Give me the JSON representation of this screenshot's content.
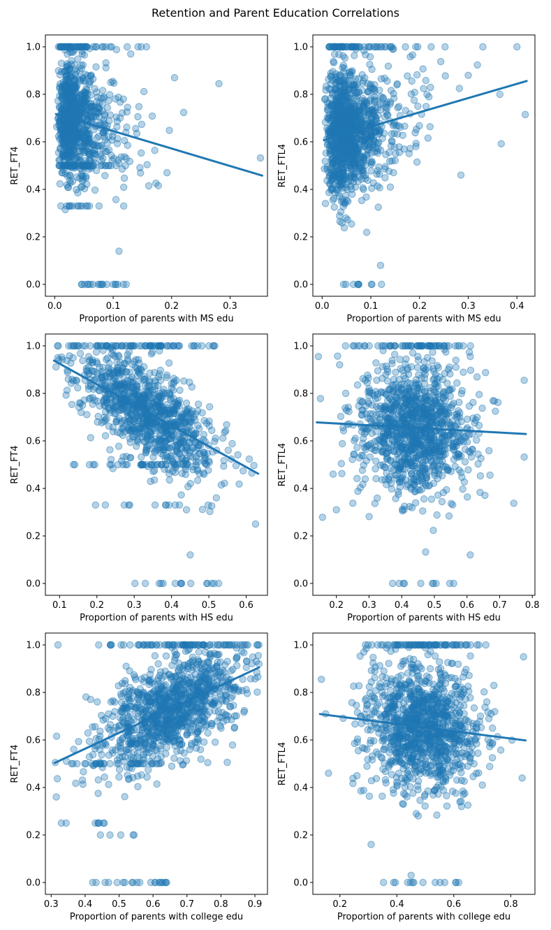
{
  "figure": {
    "title": "Retention and Parent Education Correlations",
    "background": "#ffffff",
    "accent": "#1f77b4",
    "scatter_fill_opacity": 0.33,
    "scatter_edge_opacity": 0.5,
    "point_radius": 4.7,
    "trend_line_width": 3
  },
  "chart_data": [
    {
      "type": "scatter",
      "name": "ret-ft4-vs-ms-edu",
      "xlabel": "Proportion of parents with MS edu",
      "ylabel": "RET_FT4",
      "xlim": [
        -0.016,
        0.364
      ],
      "ylim": [
        -0.05,
        1.05
      ],
      "xticks": [
        0.0,
        0.1,
        0.2,
        0.3
      ],
      "yticks": [
        0.0,
        0.2,
        0.4,
        0.6,
        0.8,
        1.0
      ],
      "trend": {
        "x": [
          0.002,
          0.355
        ],
        "y": [
          0.717,
          0.458
        ]
      },
      "points": {
        "seed": 11,
        "n": 1000,
        "x": {
          "dist": "lognormal",
          "mu": -3.41,
          "sigma": 0.65,
          "min": 0.002,
          "max": 0.23
        },
        "y": {
          "intercept": 0.719,
          "slope": -0.734,
          "sd": 0.125
        },
        "snaps": [
          {
            "y": 1.0,
            "p": 0.055
          },
          {
            "y": 0.5,
            "p": 0.04
          },
          {
            "y": 0.33,
            "p": 0.01
          },
          {
            "y": 0.0,
            "p": 0.013,
            "xmin": 0.045,
            "xmax": 0.125
          }
        ]
      },
      "extra_points": [
        [
          0.281,
          0.845
        ],
        [
          0.352,
          0.532
        ],
        [
          0.148,
          1.0
        ],
        [
          0.157,
          1.0
        ],
        [
          0.13,
          0.97
        ],
        [
          0.11,
          0.14
        ],
        [
          0.205,
          0.87
        ]
      ]
    },
    {
      "type": "scatter",
      "name": "ret-ftl4-vs-ms-edu",
      "xlabel": "Proportion of parents with MS edu",
      "ylabel": "RET_FTL4",
      "xlim": [
        -0.019,
        0.437
      ],
      "ylim": [
        -0.05,
        1.05
      ],
      "xticks": [
        0.0,
        0.1,
        0.2,
        0.3,
        0.4
      ],
      "yticks": [
        0.0,
        0.2,
        0.4,
        0.6,
        0.8,
        1.0
      ],
      "trend": {
        "x": [
          0.004,
          0.42
        ],
        "y": [
          0.607,
          0.856
        ]
      },
      "points": {
        "seed": 22,
        "n": 1200,
        "x": {
          "dist": "lognormal",
          "mu": -2.96,
          "sigma": 0.62,
          "min": 0.004,
          "max": 0.42
        },
        "y": {
          "intercept": 0.604,
          "slope": 0.599,
          "sd": 0.135
        },
        "snaps": [
          {
            "y": 1.0,
            "p": 0.05
          },
          {
            "y": 0.0,
            "p": 0.01,
            "xmin": 0.03,
            "xmax": 0.13
          }
        ]
      },
      "extra_points": [
        [
          0.417,
          0.715
        ],
        [
          0.4,
          1.0
        ],
        [
          0.365,
          0.8
        ],
        [
          0.33,
          1.0
        ],
        [
          0.3,
          0.88
        ],
        [
          0.285,
          0.46
        ],
        [
          0.12,
          0.08
        ]
      ]
    },
    {
      "type": "scatter",
      "name": "ret-ft4-vs-hs-edu",
      "xlabel": "Proportion of parents with HS edu",
      "ylabel": "RET_FT4",
      "xlim": [
        0.062,
        0.657
      ],
      "ylim": [
        -0.05,
        1.05
      ],
      "xticks": [
        0.1,
        0.2,
        0.3,
        0.4,
        0.5,
        0.6
      ],
      "yticks": [
        0.0,
        0.2,
        0.4,
        0.6,
        0.8,
        1.0
      ],
      "trend": {
        "x": [
          0.085,
          0.632
        ],
        "y": [
          0.938,
          0.462
        ]
      },
      "points": {
        "seed": 33,
        "n": 1100,
        "x": {
          "dist": "normal",
          "mean": 0.335,
          "sd": 0.095,
          "min": 0.085,
          "max": 0.633
        },
        "y": {
          "intercept": 1.012,
          "slope": -0.87,
          "sd": 0.095
        },
        "snaps": [
          {
            "y": 1.0,
            "p": 0.05
          },
          {
            "y": 0.5,
            "p": 0.035
          },
          {
            "y": 0.33,
            "p": 0.008
          },
          {
            "y": 0.0,
            "p": 0.015,
            "xmin": 0.3,
            "xmax": 0.53
          }
        ]
      },
      "extra_points": [
        [
          0.625,
          0.25
        ],
        [
          0.615,
          0.465
        ],
        [
          0.52,
          0.36
        ],
        [
          0.095,
          0.95
        ],
        [
          0.45,
          0.12
        ],
        [
          0.44,
          0.31
        ]
      ]
    },
    {
      "type": "scatter",
      "name": "ret-ftl4-vs-hs-edu",
      "xlabel": "Proportion of parents with HS edu",
      "ylabel": "RET_FTL4",
      "xlim": [
        0.128,
        0.808
      ],
      "ylim": [
        -0.05,
        1.05
      ],
      "xticks": [
        0.2,
        0.3,
        0.4,
        0.5,
        0.6,
        0.7,
        0.8
      ],
      "yticks": [
        0.0,
        0.2,
        0.4,
        0.6,
        0.8,
        1.0
      ],
      "trend": {
        "x": [
          0.14,
          0.78
        ],
        "y": [
          0.678,
          0.629
        ]
      },
      "points": {
        "seed": 44,
        "n": 1200,
        "x": {
          "dist": "normal",
          "mean": 0.44,
          "sd": 0.085,
          "min": 0.14,
          "max": 0.78
        },
        "y": {
          "intercept": 0.689,
          "slope": -0.0766,
          "sd": 0.14
        },
        "snaps": [
          {
            "y": 1.0,
            "p": 0.05
          },
          {
            "y": 0.0,
            "p": 0.01,
            "xmin": 0.37,
            "xmax": 0.62
          }
        ]
      },
      "extra_points": [
        [
          0.775,
          0.855
        ],
        [
          0.775,
          0.532
        ],
        [
          0.61,
          0.955
        ],
        [
          0.145,
          0.955
        ],
        [
          0.19,
          0.46
        ],
        [
          0.2,
          0.31
        ],
        [
          0.61,
          0.12
        ]
      ]
    },
    {
      "type": "scatter",
      "name": "ret-ft4-vs-college-edu",
      "xlabel": "Proportion of parents with college edu",
      "ylabel": "RET_FT4",
      "xlim": [
        0.283,
        0.937
      ],
      "ylim": [
        -0.05,
        1.05
      ],
      "xticks": [
        0.3,
        0.4,
        0.5,
        0.6,
        0.7,
        0.8,
        0.9
      ],
      "yticks": [
        0.0,
        0.2,
        0.4,
        0.6,
        0.8,
        1.0
      ],
      "trend": {
        "x": [
          0.31,
          0.912
        ],
        "y": [
          0.503,
          0.905
        ]
      },
      "points": {
        "seed": 55,
        "n": 1200,
        "x": {
          "dist": "normal",
          "mean": 0.655,
          "sd": 0.105,
          "min": 0.31,
          "max": 0.912
        },
        "y": {
          "intercept": 0.296,
          "slope": 0.668,
          "sd": 0.1
        },
        "snaps": [
          {
            "y": 1.0,
            "p": 0.05
          },
          {
            "y": 0.5,
            "p": 0.03,
            "xmin": 0.36,
            "xmax": 0.63
          },
          {
            "y": 0.0,
            "p": 0.015,
            "xmin": 0.42,
            "xmax": 0.66
          },
          {
            "y": 0.2,
            "p": 0.004,
            "xmin": 0.44,
            "xmax": 0.56
          },
          {
            "y": 0.25,
            "p": 0.004,
            "xmin": 0.33,
            "xmax": 0.5
          }
        ]
      },
      "extra_points": [
        [
          0.315,
          0.36
        ],
        [
          0.312,
          0.505
        ],
        [
          0.33,
          0.25
        ],
        [
          0.91,
          0.955
        ],
        [
          0.32,
          1.0
        ],
        [
          0.44,
          1.0
        ]
      ]
    },
    {
      "type": "scatter",
      "name": "ret-ftl4-vs-college-edu",
      "xlabel": "Proportion of parents with college edu",
      "ylabel": "RET_FTL4",
      "xlim": [
        0.105,
        0.885
      ],
      "ylim": [
        -0.05,
        1.05
      ],
      "xticks": [
        0.2,
        0.4,
        0.6,
        0.8
      ],
      "yticks": [
        0.0,
        0.2,
        0.4,
        0.6,
        0.8,
        1.0
      ],
      "trend": {
        "x": [
          0.13,
          0.852
        ],
        "y": [
          0.709,
          0.598
        ]
      },
      "points": {
        "seed": 66,
        "n": 1200,
        "x": {
          "dist": "normal",
          "mean": 0.49,
          "sd": 0.1,
          "min": 0.13,
          "max": 0.852
        },
        "y": {
          "intercept": 0.729,
          "slope": -0.1537,
          "sd": 0.135
        },
        "snaps": [
          {
            "y": 1.0,
            "p": 0.05
          },
          {
            "y": 0.0,
            "p": 0.012,
            "xmin": 0.35,
            "xmax": 0.62
          },
          {
            "y": 0.16,
            "p": 0.003,
            "xmin": 0.3,
            "xmax": 0.45
          }
        ]
      },
      "extra_points": [
        [
          0.845,
          0.95
        ],
        [
          0.135,
          0.855
        ],
        [
          0.16,
          0.46
        ],
        [
          0.84,
          0.44
        ],
        [
          0.15,
          0.71
        ],
        [
          0.45,
          0.03
        ]
      ]
    }
  ]
}
